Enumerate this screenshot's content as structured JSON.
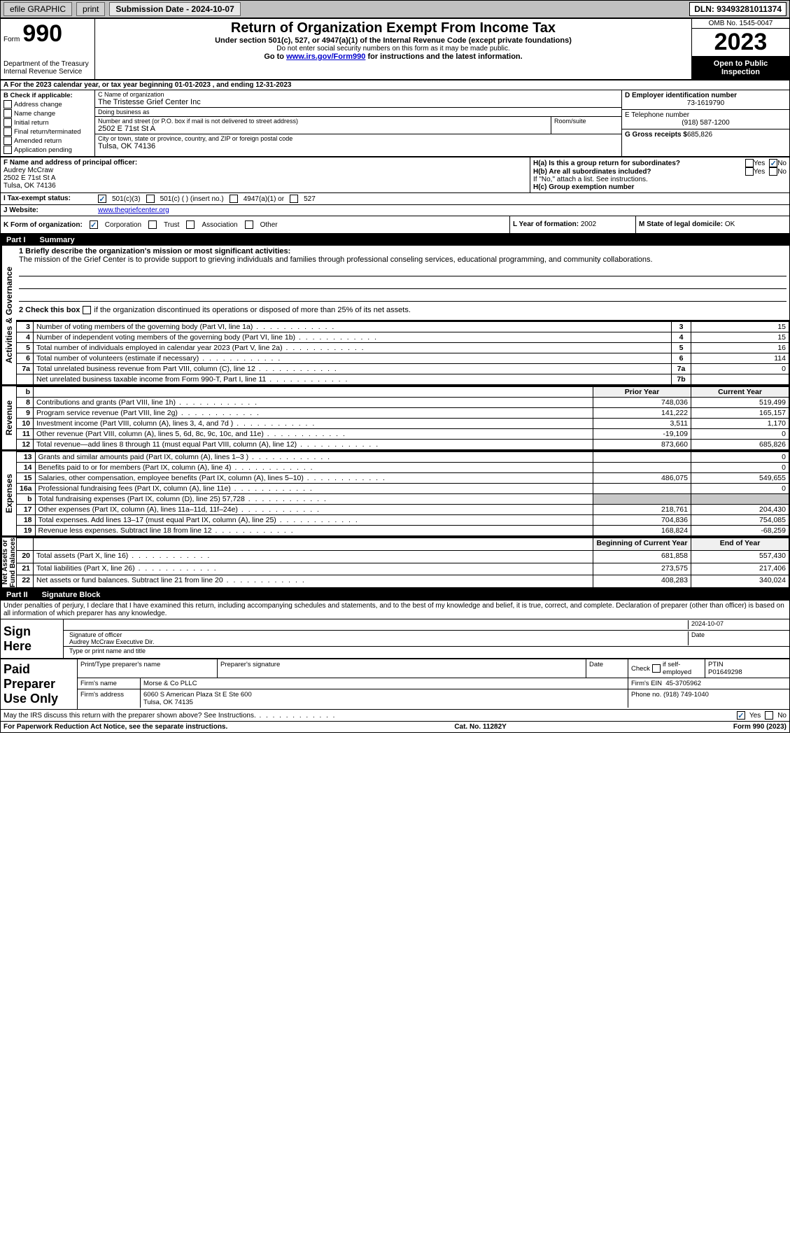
{
  "topbar": {
    "efile": "efile GRAPHIC",
    "print": "print",
    "submission": "Submission Date - 2024-10-07",
    "dln": "DLN: 93493281011374"
  },
  "header": {
    "form_word": "Form",
    "form_num": "990",
    "dept": "Department of the Treasury\nInternal Revenue Service",
    "title": "Return of Organization Exempt From Income Tax",
    "sub1": "Under section 501(c), 527, or 4947(a)(1) of the Internal Revenue Code (except private foundations)",
    "sub2": "Do not enter social security numbers on this form as it may be made public.",
    "sub3_pre": "Go to ",
    "sub3_link": "www.irs.gov/Form990",
    "sub3_post": " for instructions and the latest information.",
    "omb": "OMB No. 1545-0047",
    "year": "2023",
    "open": "Open to Public Inspection"
  },
  "row_a": "A For the 2023 calendar year, or tax year beginning 01-01-2023   , and ending 12-31-2023",
  "checkB": {
    "label": "B Check if applicable:",
    "items": [
      "Address change",
      "Name change",
      "Initial return",
      "Final return/terminated",
      "Amended return",
      "Application pending"
    ]
  },
  "entity": {
    "c_lbl": "C Name of organization",
    "c_val": "The Tristesse Grief Center Inc",
    "dba_lbl": "Doing business as",
    "dba_val": "",
    "street_lbl": "Number and street (or P.O. box if mail is not delivered to street address)",
    "street_val": "2502 E 71st St A",
    "suite_lbl": "Room/suite",
    "city_lbl": "City or town, state or province, country, and ZIP or foreign postal code",
    "city_val": "Tulsa, OK  74136",
    "d_lbl": "D Employer identification number",
    "d_val": "73-1619790",
    "e_lbl": "E Telephone number",
    "e_val": "(918) 587-1200",
    "g_lbl": "G Gross receipts $",
    "g_val": "685,826"
  },
  "officer": {
    "f_lbl": "F  Name and address of principal officer:",
    "name": "Audrey McCraw",
    "addr1": "2502 E 71st St A",
    "addr2": "Tulsa, OK  74136",
    "ha": "H(a)  Is this a group return for subordinates?",
    "hb": "H(b)  Are all subordinates included?",
    "hb_note": "If \"No,\" attach a list. See instructions.",
    "hc": "H(c)  Group exemption number",
    "yes": "Yes",
    "no": "No"
  },
  "status": {
    "i_lbl": "I   Tax-exempt status:",
    "opt1": "501(c)(3)",
    "opt2": "501(c) (  ) (insert no.)",
    "opt3": "4947(a)(1) or",
    "opt4": "527",
    "j_lbl": "J   Website:",
    "j_val": "www.thegriefcenter.org"
  },
  "korg": {
    "k_lbl": "K Form of organization:",
    "k1": "Corporation",
    "k2": "Trust",
    "k3": "Association",
    "k4": "Other",
    "l_lbl": "L Year of formation:",
    "l_val": "2002",
    "m_lbl": "M State of legal domicile:",
    "m_val": "OK"
  },
  "part1": {
    "num": "Part I",
    "title": "Summary"
  },
  "mission": {
    "q1": "1   Briefly describe the organization's mission or most significant activities:",
    "text": "The mission of the Grief Center is to provide support to grieving individuals and families through professional conseling services, educational programming, and community collaborations.",
    "q2_pre": "2   Check this box ",
    "q2_post": " if the organization discontinued its operations or disposed of more than 25% of its net assets."
  },
  "gov_rows": [
    {
      "n": "3",
      "d": "Number of voting members of the governing body (Part VI, line 1a)",
      "c": "3",
      "v": "15"
    },
    {
      "n": "4",
      "d": "Number of independent voting members of the governing body (Part VI, line 1b)",
      "c": "4",
      "v": "15"
    },
    {
      "n": "5",
      "d": "Total number of individuals employed in calendar year 2023 (Part V, line 2a)",
      "c": "5",
      "v": "16"
    },
    {
      "n": "6",
      "d": "Total number of volunteers (estimate if necessary)",
      "c": "6",
      "v": "114"
    },
    {
      "n": "7a",
      "d": "Total unrelated business revenue from Part VIII, column (C), line 12",
      "c": "7a",
      "v": "0"
    },
    {
      "n": "",
      "d": "Net unrelated business taxable income from Form 990-T, Part I, line 11",
      "c": "7b",
      "v": ""
    }
  ],
  "rev_hdr": {
    "b": "b",
    "py": "Prior Year",
    "cy": "Current Year"
  },
  "rev_rows": [
    {
      "n": "8",
      "d": "Contributions and grants (Part VIII, line 1h)",
      "py": "748,036",
      "cy": "519,499"
    },
    {
      "n": "9",
      "d": "Program service revenue (Part VIII, line 2g)",
      "py": "141,222",
      "cy": "165,157"
    },
    {
      "n": "10",
      "d": "Investment income (Part VIII, column (A), lines 3, 4, and 7d )",
      "py": "3,511",
      "cy": "1,170"
    },
    {
      "n": "11",
      "d": "Other revenue (Part VIII, column (A), lines 5, 6d, 8c, 9c, 10c, and 11e)",
      "py": "-19,109",
      "cy": "0"
    },
    {
      "n": "12",
      "d": "Total revenue—add lines 8 through 11 (must equal Part VIII, column (A), line 12)",
      "py": "873,660",
      "cy": "685,826"
    }
  ],
  "exp_rows": [
    {
      "n": "13",
      "d": "Grants and similar amounts paid (Part IX, column (A), lines 1–3 )",
      "py": "",
      "cy": "0"
    },
    {
      "n": "14",
      "d": "Benefits paid to or for members (Part IX, column (A), line 4)",
      "py": "",
      "cy": "0"
    },
    {
      "n": "15",
      "d": "Salaries, other compensation, employee benefits (Part IX, column (A), lines 5–10)",
      "py": "486,075",
      "cy": "549,655"
    },
    {
      "n": "16a",
      "d": "Professional fundraising fees (Part IX, column (A), line 11e)",
      "py": "",
      "cy": "0"
    },
    {
      "n": "b",
      "d": "Total fundraising expenses (Part IX, column (D), line 25) 57,728",
      "py": "__grey__",
      "cy": "__grey__"
    },
    {
      "n": "17",
      "d": "Other expenses (Part IX, column (A), lines 11a–11d, 11f–24e)",
      "py": "218,761",
      "cy": "204,430"
    },
    {
      "n": "18",
      "d": "Total expenses. Add lines 13–17 (must equal Part IX, column (A), line 25)",
      "py": "704,836",
      "cy": "754,085"
    },
    {
      "n": "19",
      "d": "Revenue less expenses. Subtract line 18 from line 12",
      "py": "168,824",
      "cy": "-68,259"
    }
  ],
  "na_hdr": {
    "py": "Beginning of Current Year",
    "cy": "End of Year"
  },
  "na_rows": [
    {
      "n": "20",
      "d": "Total assets (Part X, line 16)",
      "py": "681,858",
      "cy": "557,430"
    },
    {
      "n": "21",
      "d": "Total liabilities (Part X, line 26)",
      "py": "273,575",
      "cy": "217,406"
    },
    {
      "n": "22",
      "d": "Net assets or fund balances. Subtract line 21 from line 20",
      "py": "408,283",
      "cy": "340,024"
    }
  ],
  "side_labels": {
    "gov": "Activities & Governance",
    "rev": "Revenue",
    "exp": "Expenses",
    "na": "Net Assets or\nFund Balances"
  },
  "part2": {
    "num": "Part II",
    "title": "Signature Block"
  },
  "sig": {
    "decl": "Under penalties of perjury, I declare that I have examined this return, including accompanying schedules and statements, and to the best of my knowledge and belief, it is true, correct, and complete. Declaration of preparer (other than officer) is based on all information of which preparer has any knowledge.",
    "sign_here": "Sign Here",
    "sig_officer": "Signature of officer",
    "date": "2024-10-07",
    "name_title": "Audrey McCraw  Executive Dir.",
    "type_name": "Type or print name and title",
    "date_lbl": "Date"
  },
  "paid": {
    "label": "Paid Preparer Use Only",
    "print_lbl": "Print/Type preparer's name",
    "sig_lbl": "Preparer's signature",
    "date_lbl": "Date",
    "check_lbl": "Check",
    "if_lbl": "if self-employed",
    "ptin_lbl": "PTIN",
    "ptin": "P01649298",
    "firm_name_lbl": "Firm's name",
    "firm_name": "Morse & Co PLLC",
    "firm_ein_lbl": "Firm's EIN",
    "firm_ein": "45-3705962",
    "firm_addr_lbl": "Firm's address",
    "firm_addr": "6060 S American Plaza St E Ste 600",
    "firm_city": "Tulsa, OK  74135",
    "phone_lbl": "Phone no.",
    "phone": "(918) 749-1040"
  },
  "discuss": "May the IRS discuss this return with the preparer shown above? See Instructions.",
  "footer": {
    "left": "For Paperwork Reduction Act Notice, see the separate instructions.",
    "mid": "Cat. No. 11282Y",
    "right": "Form 990 (2023)"
  }
}
